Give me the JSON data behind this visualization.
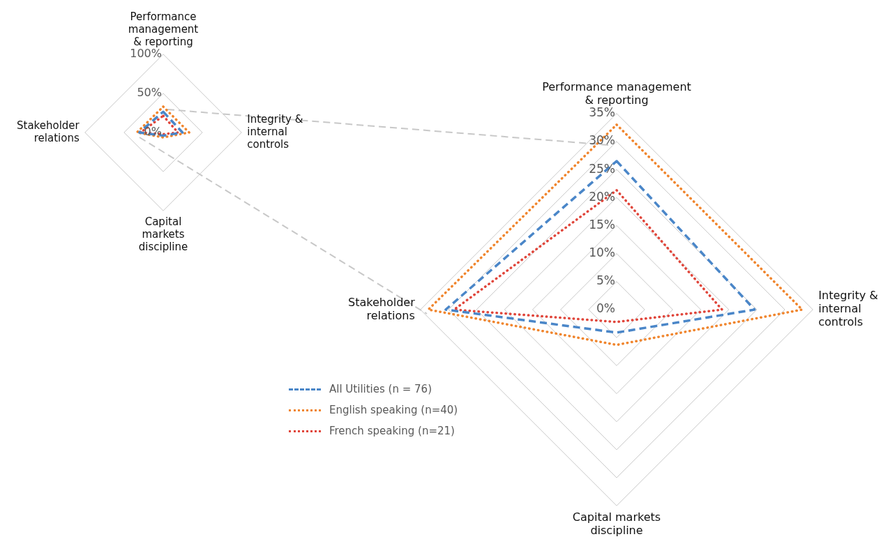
{
  "chart_data": [
    {
      "type": "radar",
      "categories": [
        "Performance management & reporting",
        "Integrity & internal controls",
        "Capital markets discipline",
        "Stakeholder relations"
      ],
      "series": [
        {
          "name": null,
          "color": "#4a86c8",
          "line_style": "dashed",
          "values": [
            26.5,
            24.6,
            4.1,
            30.5
          ]
        },
        {
          "name": null,
          "color": "#f0852d",
          "line_style": "dotted",
          "values": [
            33,
            33.1,
            6.3,
            33.6
          ]
        },
        {
          "name": null,
          "color": "#e0453a",
          "line_style": "dotted",
          "values": [
            21.3,
            18.8,
            2.2,
            29
          ]
        }
      ],
      "ylim": [
        0,
        100
      ],
      "yticks": [
        {
          "value": 0,
          "label": "0%"
        },
        {
          "value": 50,
          "label": "50%"
        },
        {
          "value": 100,
          "label": "100%"
        }
      ],
      "grid": true,
      "marker": "none",
      "legend": false
    },
    {
      "type": "radar",
      "categories": [
        "Performance management & reporting",
        "Integrity & internal controls",
        "Capital markets discipline",
        "Stakeholder relations"
      ],
      "series": [
        {
          "name": "All Utilities (n = 76)",
          "color": "#4a86c8",
          "line_style": "dashed",
          "values": [
            26.5,
            24.6,
            4.1,
            30.5
          ]
        },
        {
          "name": "English speaking (n=40)",
          "color": "#f0852d",
          "line_style": "dotted",
          "values": [
            33,
            33.1,
            6.3,
            33.6
          ]
        },
        {
          "name": "French speaking (n=21)",
          "color": "#e0453a",
          "line_style": "dotted",
          "values": [
            21.3,
            18.8,
            2.2,
            29
          ]
        }
      ],
      "ylim": [
        0,
        35
      ],
      "yticks": [
        {
          "value": 0,
          "label": "0%"
        },
        {
          "value": 5,
          "label": "5%"
        },
        {
          "value": 10,
          "label": "10%"
        },
        {
          "value": 15,
          "label": "15%"
        },
        {
          "value": 20,
          "label": "20%"
        },
        {
          "value": 25,
          "label": "25%"
        },
        {
          "value": 30,
          "label": "30%"
        },
        {
          "value": 35,
          "label": "35%"
        }
      ],
      "grid": true,
      "marker": "none",
      "legend": "bottom left"
    }
  ]
}
